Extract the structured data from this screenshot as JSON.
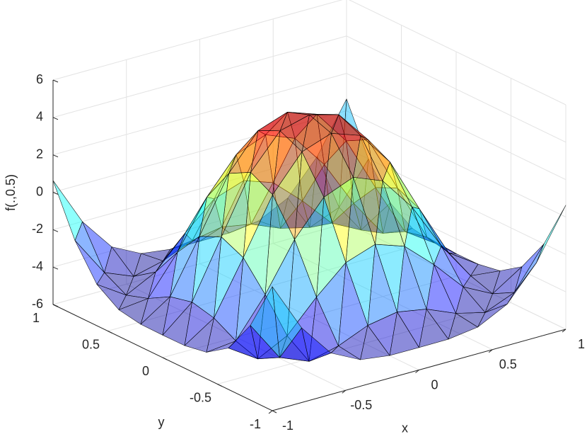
{
  "chart_data": {
    "type": "surface",
    "zlabel": "f(.,0.5)",
    "xlabel": "x",
    "ylabel": "y",
    "x": [
      -1,
      -0.8,
      -0.6,
      -0.4,
      -0.2,
      0,
      0.2,
      0.4,
      0.6,
      0.8,
      1
    ],
    "y": [
      -1,
      -0.8,
      -0.6,
      -0.4,
      -0.2,
      0,
      0.2,
      0.4,
      0.6,
      0.8,
      1
    ],
    "z": [
      [
        0.63,
        -2.01,
        -3.79,
        -4.58,
        -4.79,
        -4.8,
        -4.79,
        -4.58,
        -3.79,
        -2.01,
        0.63
      ],
      [
        -2.01,
        -4.16,
        -4.8,
        -4.41,
        -3.75,
        -3.47,
        -3.75,
        -4.41,
        -4.8,
        -4.16,
        -2.01
      ],
      [
        -3.79,
        -4.8,
        -4.0,
        -2.37,
        -0.96,
        -0.42,
        -0.96,
        -2.37,
        -4.0,
        -4.8,
        -3.79
      ],
      [
        -4.58,
        -4.41,
        -2.37,
        0.14,
        1.97,
        2.6,
        1.97,
        0.14,
        -2.37,
        -4.41,
        -4.58
      ],
      [
        -4.79,
        -3.75,
        -0.96,
        1.97,
        3.83,
        4.38,
        3.83,
        1.97,
        -0.96,
        -3.75,
        -4.79
      ],
      [
        -4.8,
        -3.47,
        -0.42,
        2.6,
        4.38,
        4.8,
        4.38,
        2.6,
        -0.42,
        -3.47,
        -4.8
      ],
      [
        -4.79,
        -3.75,
        -0.96,
        1.97,
        3.83,
        4.38,
        3.83,
        1.97,
        -0.96,
        -3.75,
        -4.79
      ],
      [
        -4.58,
        -4.41,
        -2.37,
        0.14,
        1.97,
        2.6,
        1.97,
        0.14,
        -2.37,
        -4.41,
        -4.58
      ],
      [
        -3.79,
        -4.8,
        -4.0,
        -2.37,
        -0.96,
        -0.42,
        -0.96,
        -2.37,
        -4.0,
        -4.8,
        -3.79
      ],
      [
        -2.01,
        -4.16,
        -4.8,
        -4.41,
        -3.75,
        -3.47,
        -3.75,
        -4.41,
        -4.8,
        -4.16,
        -2.01
      ],
      [
        0.63,
        -2.01,
        -3.79,
        -4.58,
        -4.79,
        -4.8,
        -4.79,
        -4.58,
        -3.79,
        -2.01,
        0.63
      ]
    ],
    "xlim": [
      -1,
      1
    ],
    "ylim": [
      -1,
      1
    ],
    "zlim": [
      -6,
      6
    ],
    "xticks": [
      -1,
      -0.5,
      0,
      0.5,
      1
    ],
    "yticks": [
      -1,
      -0.5,
      0,
      0.5,
      1
    ],
    "zticks": [
      -6,
      -4,
      -2,
      0,
      2,
      4,
      6
    ],
    "colormap": "jet",
    "face_alpha": 0.45,
    "edge_color": "#000000",
    "grid": true
  }
}
